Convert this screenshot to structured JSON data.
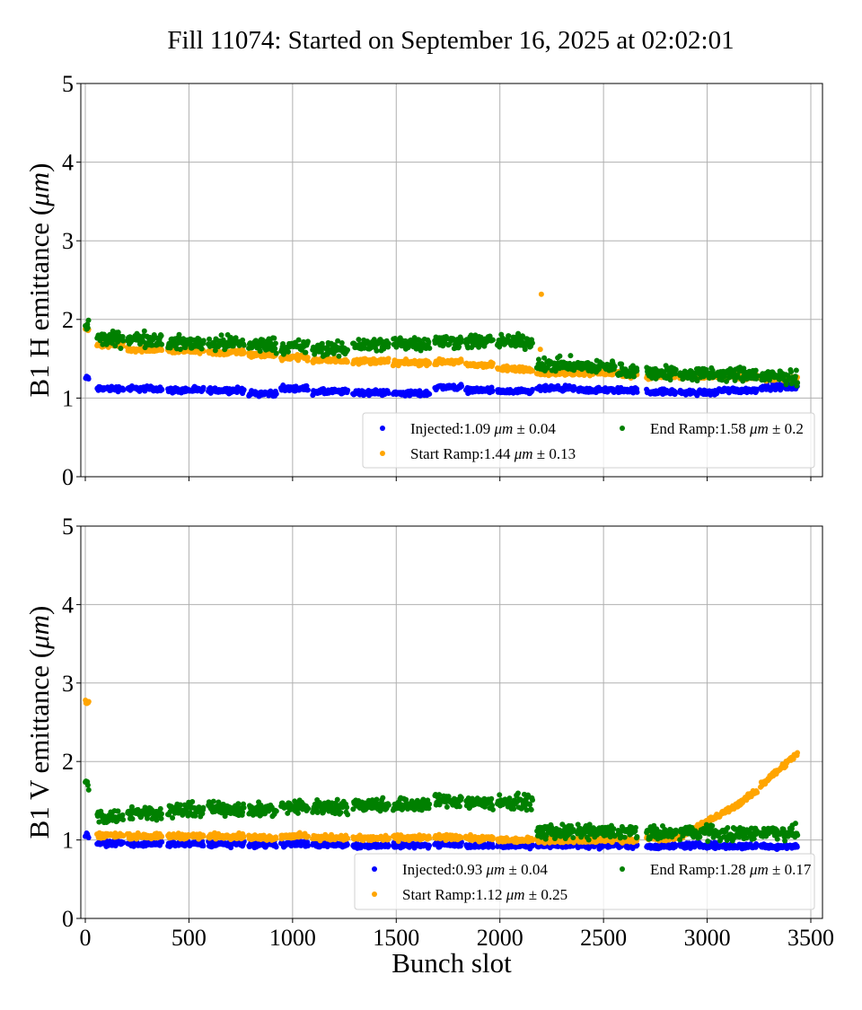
{
  "title": "Fill 11074: Started on September 16, 2025 at 02:02:01",
  "colors": {
    "Injected": "#0000ff",
    "Start Ramp": "#ffa500",
    "End Ramp": "#008000"
  },
  "chart_data": [
    {
      "type": "scatter",
      "ylabel": {
        "prefix": "B1 H emittance (",
        "unit": "μm",
        "suffix": ")"
      },
      "xlabel": "",
      "xlim": [
        -20,
        3560
      ],
      "ylim": [
        0,
        5
      ],
      "xticks": [
        0,
        500,
        1000,
        1500,
        2000,
        2500,
        3000,
        3500
      ],
      "yticks": [
        "0",
        "1",
        "2",
        "3",
        "4",
        "5"
      ],
      "grid": true,
      "legend_placement": "lower-right",
      "legend": [
        {
          "series": "Injected",
          "label": "Injected:1.09",
          "unit": "μm",
          "suffix": "± 0.04"
        },
        {
          "series": "End Ramp",
          "label": "End Ramp:1.58",
          "unit": "μm",
          "suffix": "± 0.2"
        },
        {
          "series": "Start Ramp",
          "label": "Start Ramp:1.44",
          "unit": "μm",
          "suffix": "± 0.13"
        }
      ],
      "trains": [
        [
          0,
          15
        ],
        [
          56,
          182
        ],
        [
          203,
          368
        ],
        [
          398,
          571
        ],
        [
          593,
          766
        ],
        [
          788,
          922
        ],
        [
          944,
          1074
        ],
        [
          1096,
          1264
        ],
        [
          1291,
          1464
        ],
        [
          1485,
          1659
        ],
        [
          1685,
          1815
        ],
        [
          1836,
          1966
        ],
        [
          1988,
          2157
        ],
        [
          2178,
          2360
        ],
        [
          2373,
          2555
        ],
        [
          2568,
          2663
        ],
        [
          2707,
          2850
        ],
        [
          2867,
          3044
        ],
        [
          3053,
          3240
        ],
        [
          3257,
          3434
        ]
      ],
      "series": [
        {
          "name": "Injected",
          "train_means": [
            1.25,
            1.12,
            1.12,
            1.1,
            1.1,
            1.06,
            1.12,
            1.08,
            1.07,
            1.06,
            1.14,
            1.1,
            1.08,
            1.12,
            1.1,
            1.1,
            1.08,
            1.07,
            1.1,
            1.14
          ]
        },
        {
          "name": "Start Ramp",
          "train_means": [
            1.87,
            1.68,
            1.62,
            1.6,
            1.58,
            1.55,
            1.52,
            1.48,
            1.47,
            1.45,
            1.46,
            1.42,
            1.37,
            1.32,
            1.32,
            1.3,
            1.28,
            1.27,
            1.27,
            1.25
          ],
          "outliers": [
            [
              2200,
              2.32
            ],
            [
              2195,
              1.62
            ]
          ]
        },
        {
          "name": "End Ramp",
          "train_means": [
            1.92,
            1.75,
            1.75,
            1.7,
            1.7,
            1.68,
            1.65,
            1.62,
            1.68,
            1.7,
            1.72,
            1.72,
            1.72,
            1.42,
            1.4,
            1.35,
            1.32,
            1.3,
            1.3,
            1.27
          ]
        }
      ]
    },
    {
      "type": "scatter",
      "ylabel": {
        "prefix": "B1 V emittance (",
        "unit": "μm",
        "suffix": ")"
      },
      "xlabel": "Bunch slot",
      "xlim": [
        -20,
        3560
      ],
      "ylim": [
        0,
        5
      ],
      "xticks": [
        0,
        500,
        1000,
        1500,
        2000,
        2500,
        3000,
        3500
      ],
      "yticks": [
        "0",
        "1",
        "2",
        "3",
        "4",
        "5"
      ],
      "grid": true,
      "legend_placement": "lower-right",
      "legend": [
        {
          "series": "Injected",
          "label": "Injected:0.93",
          "unit": "μm",
          "suffix": "± 0.04"
        },
        {
          "series": "End Ramp",
          "label": "End Ramp:1.28",
          "unit": "μm",
          "suffix": "± 0.17"
        },
        {
          "series": "Start Ramp",
          "label": "Start Ramp:1.12",
          "unit": "μm",
          "suffix": "± 0.25"
        }
      ],
      "trains": [
        [
          0,
          15
        ],
        [
          56,
          182
        ],
        [
          203,
          368
        ],
        [
          398,
          571
        ],
        [
          593,
          766
        ],
        [
          788,
          922
        ],
        [
          944,
          1074
        ],
        [
          1096,
          1264
        ],
        [
          1291,
          1464
        ],
        [
          1485,
          1659
        ],
        [
          1685,
          1815
        ],
        [
          1836,
          1966
        ],
        [
          1988,
          2157
        ],
        [
          2178,
          2360
        ],
        [
          2373,
          2555
        ],
        [
          2568,
          2663
        ],
        [
          2707,
          2850
        ],
        [
          2867,
          3044
        ],
        [
          3053,
          3240
        ],
        [
          3257,
          3434
        ]
      ],
      "series": [
        {
          "name": "Injected",
          "train_means": [
            1.05,
            0.96,
            0.95,
            0.95,
            0.95,
            0.94,
            0.95,
            0.94,
            0.93,
            0.93,
            0.95,
            0.93,
            0.93,
            0.93,
            0.93,
            0.93,
            0.92,
            0.93,
            0.92,
            0.92
          ]
        },
        {
          "name": "Start Ramp",
          "train_means": [
            2.75,
            1.06,
            1.05,
            1.05,
            1.05,
            1.03,
            1.05,
            1.03,
            1.02,
            1.03,
            1.03,
            1.02,
            1.0,
            1.0,
            1.0,
            1.0,
            1.02,
            [
              1.05,
              1.3
            ],
            [
              1.3,
              1.62
            ],
            [
              1.7,
              2.1
            ]
          ]
        },
        {
          "name": "End Ramp",
          "train_means": [
            1.7,
            1.3,
            1.35,
            1.38,
            1.4,
            1.38,
            1.42,
            1.42,
            1.45,
            1.45,
            1.5,
            1.48,
            1.48,
            1.1,
            1.1,
            1.1,
            1.08,
            1.1,
            1.08,
            1.1
          ]
        }
      ]
    }
  ]
}
